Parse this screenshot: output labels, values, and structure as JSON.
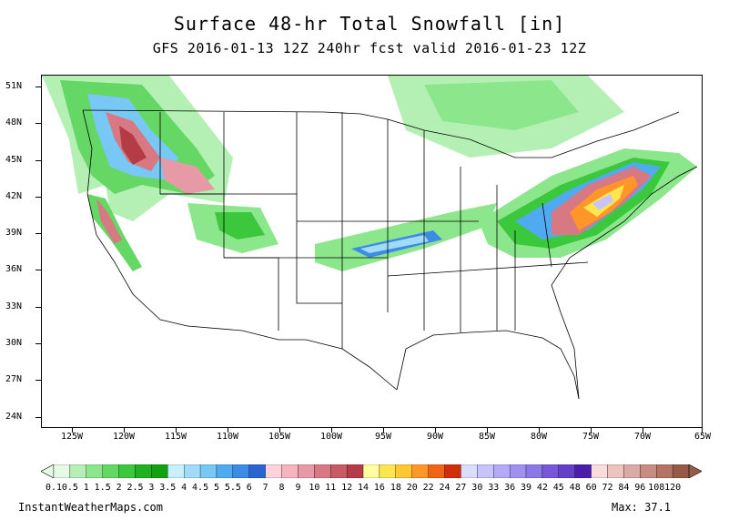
{
  "title": "Surface 48-hr Total Snowfall [in]",
  "subtitle": "GFS 2016-01-13 12Z 240hr fcst valid 2016-01-23 12Z",
  "lat_labels": [
    "51N",
    "48N",
    "45N",
    "42N",
    "39N",
    "36N",
    "33N",
    "30N",
    "27N",
    "24N"
  ],
  "lon_labels": [
    "125W",
    "120W",
    "115W",
    "110W",
    "105W",
    "100W",
    "95W",
    "90W",
    "85W",
    "80W",
    "75W",
    "70W",
    "65W"
  ],
  "colorbar": {
    "labels": [
      "0.1",
      "0.5",
      "1",
      "1.5",
      "2",
      "2.5",
      "3",
      "3.5",
      "4",
      "4.5",
      "5",
      "5.5",
      "6",
      "7",
      "8",
      "9",
      "10",
      "11",
      "12",
      "14",
      "16",
      "18",
      "20",
      "22",
      "24",
      "27",
      "30",
      "33",
      "36",
      "39",
      "42",
      "45",
      "48",
      "60",
      "72",
      "84",
      "96",
      "108",
      "120"
    ],
    "colors": [
      "#e6fae6",
      "#b4f0b4",
      "#8ce68c",
      "#64d764",
      "#3cc83c",
      "#20b020",
      "#10a010",
      "#c8f0ff",
      "#a0dcfa",
      "#78c8f5",
      "#50aaf0",
      "#3c8ce6",
      "#2864d2",
      "#ffd2dc",
      "#f5b4be",
      "#e69aa5",
      "#d77882",
      "#c85a64",
      "#b43c46",
      "#ffffa0",
      "#ffe650",
      "#ffc832",
      "#ff9628",
      "#f06414",
      "#d22d0a",
      "#dcdcff",
      "#c8c3fa",
      "#b4aaf5",
      "#a090f0",
      "#8c78e6",
      "#7858d7",
      "#6440c8",
      "#4b1eaa",
      "#fadcdc",
      "#ebc3bf",
      "#dcaaa5",
      "#c88c82",
      "#b47364",
      "#965a46"
    ]
  },
  "footer_left": "InstantWeatherMaps.com",
  "footer_right": "Max:  37.1"
}
